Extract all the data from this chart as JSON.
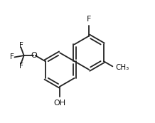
{
  "background": "#ffffff",
  "bond_color": "#222222",
  "bond_lw": 1.3,
  "text_color": "#111111",
  "font_size": 7.5,
  "fig_w": 2.18,
  "fig_h": 1.73,
  "dpi": 100,
  "xlim": [
    -2.5,
    3.2
  ],
  "ylim": [
    -1.8,
    2.4
  ]
}
